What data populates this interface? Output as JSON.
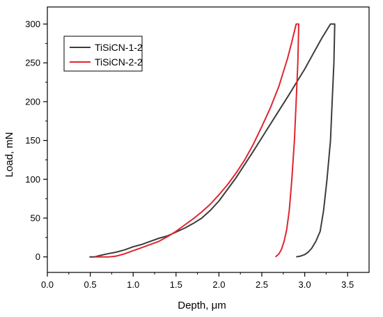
{
  "chart_data": {
    "type": "line",
    "xlabel": "Depth, μm",
    "ylabel": "Load, mN",
    "xlim": [
      0.0,
      3.75
    ],
    "ylim": [
      -20,
      322
    ],
    "xticks": [
      "0.0",
      "0.5",
      "1.0",
      "1.5",
      "2.0",
      "2.5",
      "3.0",
      "3.5"
    ],
    "xtick_values": [
      0.0,
      0.5,
      1.0,
      1.5,
      2.0,
      2.5,
      3.0,
      3.5
    ],
    "yticks": [
      "0",
      "50",
      "100",
      "150",
      "200",
      "250",
      "300"
    ],
    "ytick_values": [
      0,
      50,
      100,
      150,
      200,
      250,
      300
    ],
    "legend_position": "top-left",
    "grid": false,
    "series": [
      {
        "name": "TiSiCN-1-2",
        "color": "#3c3c3c",
        "x": [
          0.49,
          0.55,
          0.62,
          0.7,
          0.8,
          0.9,
          1.0,
          1.1,
          1.2,
          1.3,
          1.4,
          1.5,
          1.6,
          1.7,
          1.8,
          1.9,
          2.0,
          2.2,
          2.4,
          2.6,
          2.8,
          3.0,
          3.1,
          3.2,
          3.3,
          3.35,
          3.34,
          3.32,
          3.3,
          3.26,
          3.22,
          3.18,
          3.13,
          3.08,
          3.04,
          3.0,
          2.95,
          2.9
        ],
        "y": [
          0,
          0,
          2,
          4,
          6,
          9,
          13,
          16,
          20,
          24,
          27,
          32,
          37,
          43,
          50,
          60,
          72,
          102,
          136,
          171,
          206,
          242,
          262,
          282,
          300,
          300,
          250,
          200,
          150,
          100,
          60,
          33,
          20,
          11,
          6,
          3,
          1,
          0
        ]
      },
      {
        "name": "TiSiCN-2-2",
        "color": "#e0242e",
        "x": [
          0.55,
          0.65,
          0.72,
          0.8,
          0.9,
          1.0,
          1.1,
          1.2,
          1.3,
          1.4,
          1.5,
          1.6,
          1.7,
          1.8,
          1.9,
          2.0,
          2.1,
          2.2,
          2.3,
          2.4,
          2.5,
          2.6,
          2.7,
          2.8,
          2.85,
          2.9,
          2.93,
          2.92,
          2.9,
          2.88,
          2.85,
          2.82,
          2.79,
          2.76,
          2.73,
          2.7,
          2.66
        ],
        "y": [
          0,
          0,
          0,
          1,
          4,
          8,
          12,
          16,
          20,
          26,
          33,
          41,
          49,
          58,
          68,
          80,
          93,
          108,
          125,
          145,
          168,
          192,
          220,
          256,
          277,
          300,
          300,
          250,
          200,
          150,
          100,
          60,
          35,
          20,
          10,
          4,
          0
        ]
      }
    ]
  }
}
